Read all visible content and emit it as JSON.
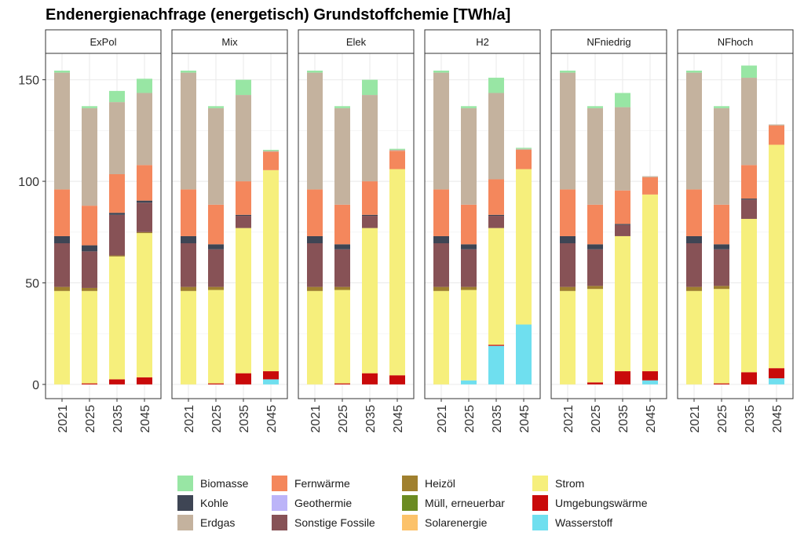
{
  "chart_data": {
    "type": "bar",
    "stacked": true,
    "title": "Endenergienachfrage (energetisch) Grundstoffchemie [TWh/a]",
    "xlabel": "",
    "ylabel": "",
    "ylim": [
      -7,
      163
    ],
    "y_ticks": [
      0,
      50,
      100,
      150
    ],
    "grid": true,
    "legend_position": "bottom",
    "categories": [
      "2021",
      "2025",
      "2035",
      "2045"
    ],
    "stack_order": [
      "Wasserstoff",
      "Umgebungswärme",
      "Strom",
      "Solarenergie",
      "Müll, erneuerbar",
      "Heizöl",
      "Sonstige Fossile",
      "Geothermie",
      "Kohle",
      "Fernwärme",
      "Erdgas",
      "Biomasse"
    ],
    "legend_columns": [
      [
        "Biomasse",
        "Kohle",
        "Erdgas"
      ],
      [
        "Fernwärme",
        "Geothermie",
        "Sonstige Fossile"
      ],
      [
        "Heizöl",
        "Müll, erneuerbar",
        "Solarenergie"
      ],
      [
        "Strom",
        "Umgebungswärme",
        "Wasserstoff"
      ]
    ],
    "colors": {
      "Biomasse": "#98e6a4",
      "Kohle": "#3e4554",
      "Erdgas": "#c4b29e",
      "Fernwärme": "#f4875c",
      "Geothermie": "#bcb4f8",
      "Sonstige Fossile": "#875256",
      "Heizöl": "#a0802e",
      "Müll, erneuerbar": "#6b8b22",
      "Solarenergie": "#fcc26a",
      "Strom": "#f6ef7c",
      "Umgebungswärme": "#c90a0a",
      "Wasserstoff": "#6fdfef"
    },
    "panels": [
      {
        "name": "ExPol",
        "series": [
          {
            "name": "Wasserstoff",
            "values": [
              0,
              0,
              0,
              0
            ]
          },
          {
            "name": "Umgebungswärme",
            "values": [
              0,
              0.5,
              2.5,
              3.5
            ]
          },
          {
            "name": "Strom",
            "values": [
              46,
              45.5,
              60.5,
              71
            ]
          },
          {
            "name": "Sonstige Fossile",
            "values": [
              21.5,
              18,
              20,
              14.5
            ]
          },
          {
            "name": "Kohle",
            "values": [
              3.5,
              3,
              1,
              1
            ]
          },
          {
            "name": "Heizöl",
            "values": [
              2,
              1.5,
              0.5,
              0.5
            ]
          },
          {
            "name": "Fernwärme",
            "values": [
              23,
              19.5,
              19,
              17.5
            ]
          },
          {
            "name": "Erdgas",
            "values": [
              57.5,
              48,
              35.5,
              35.5
            ]
          },
          {
            "name": "Biomasse",
            "values": [
              1,
              1,
              5.5,
              7
            ]
          }
        ]
      },
      {
        "name": "Mix",
        "series": [
          {
            "name": "Wasserstoff",
            "values": [
              0,
              0,
              0,
              2.5
            ]
          },
          {
            "name": "Umgebungswärme",
            "values": [
              0,
              0.5,
              5.5,
              4
            ]
          },
          {
            "name": "Strom",
            "values": [
              46,
              46,
              71.5,
              99
            ]
          },
          {
            "name": "Sonstige Fossile",
            "values": [
              21.5,
              18.5,
              6,
              0
            ]
          },
          {
            "name": "Kohle",
            "values": [
              3.5,
              2.5,
              0.5,
              0
            ]
          },
          {
            "name": "Heizöl",
            "values": [
              2,
              1.5,
              0,
              0
            ]
          },
          {
            "name": "Fernwärme",
            "values": [
              23,
              19.5,
              16.5,
              9
            ]
          },
          {
            "name": "Erdgas",
            "values": [
              57.5,
              47.5,
              42.5,
              0.5
            ]
          },
          {
            "name": "Biomasse",
            "values": [
              1,
              1,
              7.5,
              0.5
            ]
          }
        ]
      },
      {
        "name": "Elek",
        "series": [
          {
            "name": "Wasserstoff",
            "values": [
              0,
              0,
              0,
              0
            ]
          },
          {
            "name": "Umgebungswärme",
            "values": [
              0,
              0.5,
              5.5,
              4.5
            ]
          },
          {
            "name": "Strom",
            "values": [
              46,
              46,
              71.5,
              101.5
            ]
          },
          {
            "name": "Sonstige Fossile",
            "values": [
              21.5,
              18.5,
              6,
              0
            ]
          },
          {
            "name": "Kohle",
            "values": [
              3.5,
              2.5,
              0.5,
              0
            ]
          },
          {
            "name": "Heizöl",
            "values": [
              2,
              1.5,
              0,
              0
            ]
          },
          {
            "name": "Fernwärme",
            "values": [
              23,
              19.5,
              16.5,
              9
            ]
          },
          {
            "name": "Erdgas",
            "values": [
              57.5,
              47.5,
              42.5,
              0.5
            ]
          },
          {
            "name": "Biomasse",
            "values": [
              1,
              1,
              7.5,
              0.5
            ]
          }
        ]
      },
      {
        "name": "H2",
        "series": [
          {
            "name": "Wasserstoff",
            "values": [
              0,
              2,
              19,
              29.5
            ]
          },
          {
            "name": "Umgebungswärme",
            "values": [
              0,
              0,
              0.5,
              0
            ]
          },
          {
            "name": "Strom",
            "values": [
              46,
              44.5,
              57.5,
              76.5
            ]
          },
          {
            "name": "Sonstige Fossile",
            "values": [
              21.5,
              18.5,
              6,
              0
            ]
          },
          {
            "name": "Kohle",
            "values": [
              3.5,
              2.5,
              0.5,
              0
            ]
          },
          {
            "name": "Heizöl",
            "values": [
              2,
              1.5,
              0,
              0
            ]
          },
          {
            "name": "Fernwärme",
            "values": [
              23,
              19.5,
              17.5,
              9.5
            ]
          },
          {
            "name": "Erdgas",
            "values": [
              57.5,
              47.5,
              42.5,
              0.5
            ]
          },
          {
            "name": "Biomasse",
            "values": [
              1,
              1,
              7.5,
              0.5
            ]
          }
        ]
      },
      {
        "name": "NFniedrig",
        "series": [
          {
            "name": "Wasserstoff",
            "values": [
              0,
              0,
              0,
              2
            ]
          },
          {
            "name": "Umgebungswärme",
            "values": [
              0,
              1,
              6.5,
              4.5
            ]
          },
          {
            "name": "Strom",
            "values": [
              46,
              46,
              66.5,
              87
            ]
          },
          {
            "name": "Sonstige Fossile",
            "values": [
              21.5,
              18,
              5.5,
              0
            ]
          },
          {
            "name": "Kohle",
            "values": [
              3.5,
              2.5,
              0.5,
              0
            ]
          },
          {
            "name": "Heizöl",
            "values": [
              2,
              1.5,
              0,
              0
            ]
          },
          {
            "name": "Fernwärme",
            "values": [
              23,
              19.5,
              16.5,
              8.5
            ]
          },
          {
            "name": "Erdgas",
            "values": [
              57.5,
              47.5,
              41,
              0.5
            ]
          },
          {
            "name": "Biomasse",
            "values": [
              1,
              1,
              7,
              0
            ]
          }
        ]
      },
      {
        "name": "NFhoch",
        "series": [
          {
            "name": "Wasserstoff",
            "values": [
              0,
              0,
              0,
              3
            ]
          },
          {
            "name": "Umgebungswärme",
            "values": [
              0,
              0.5,
              6,
              5
            ]
          },
          {
            "name": "Strom",
            "values": [
              46,
              46.5,
              75.5,
              110
            ]
          },
          {
            "name": "Sonstige Fossile",
            "values": [
              21.5,
              18,
              9.5,
              0
            ]
          },
          {
            "name": "Kohle",
            "values": [
              3.5,
              2.5,
              0.5,
              0
            ]
          },
          {
            "name": "Heizöl",
            "values": [
              2,
              1.5,
              0,
              0
            ]
          },
          {
            "name": "Fernwärme",
            "values": [
              23,
              19.5,
              16.5,
              9.5
            ]
          },
          {
            "name": "Erdgas",
            "values": [
              57.5,
              47.5,
              43,
              0.5
            ]
          },
          {
            "name": "Biomasse",
            "values": [
              1,
              1,
              6,
              0
            ]
          }
        ]
      }
    ]
  }
}
